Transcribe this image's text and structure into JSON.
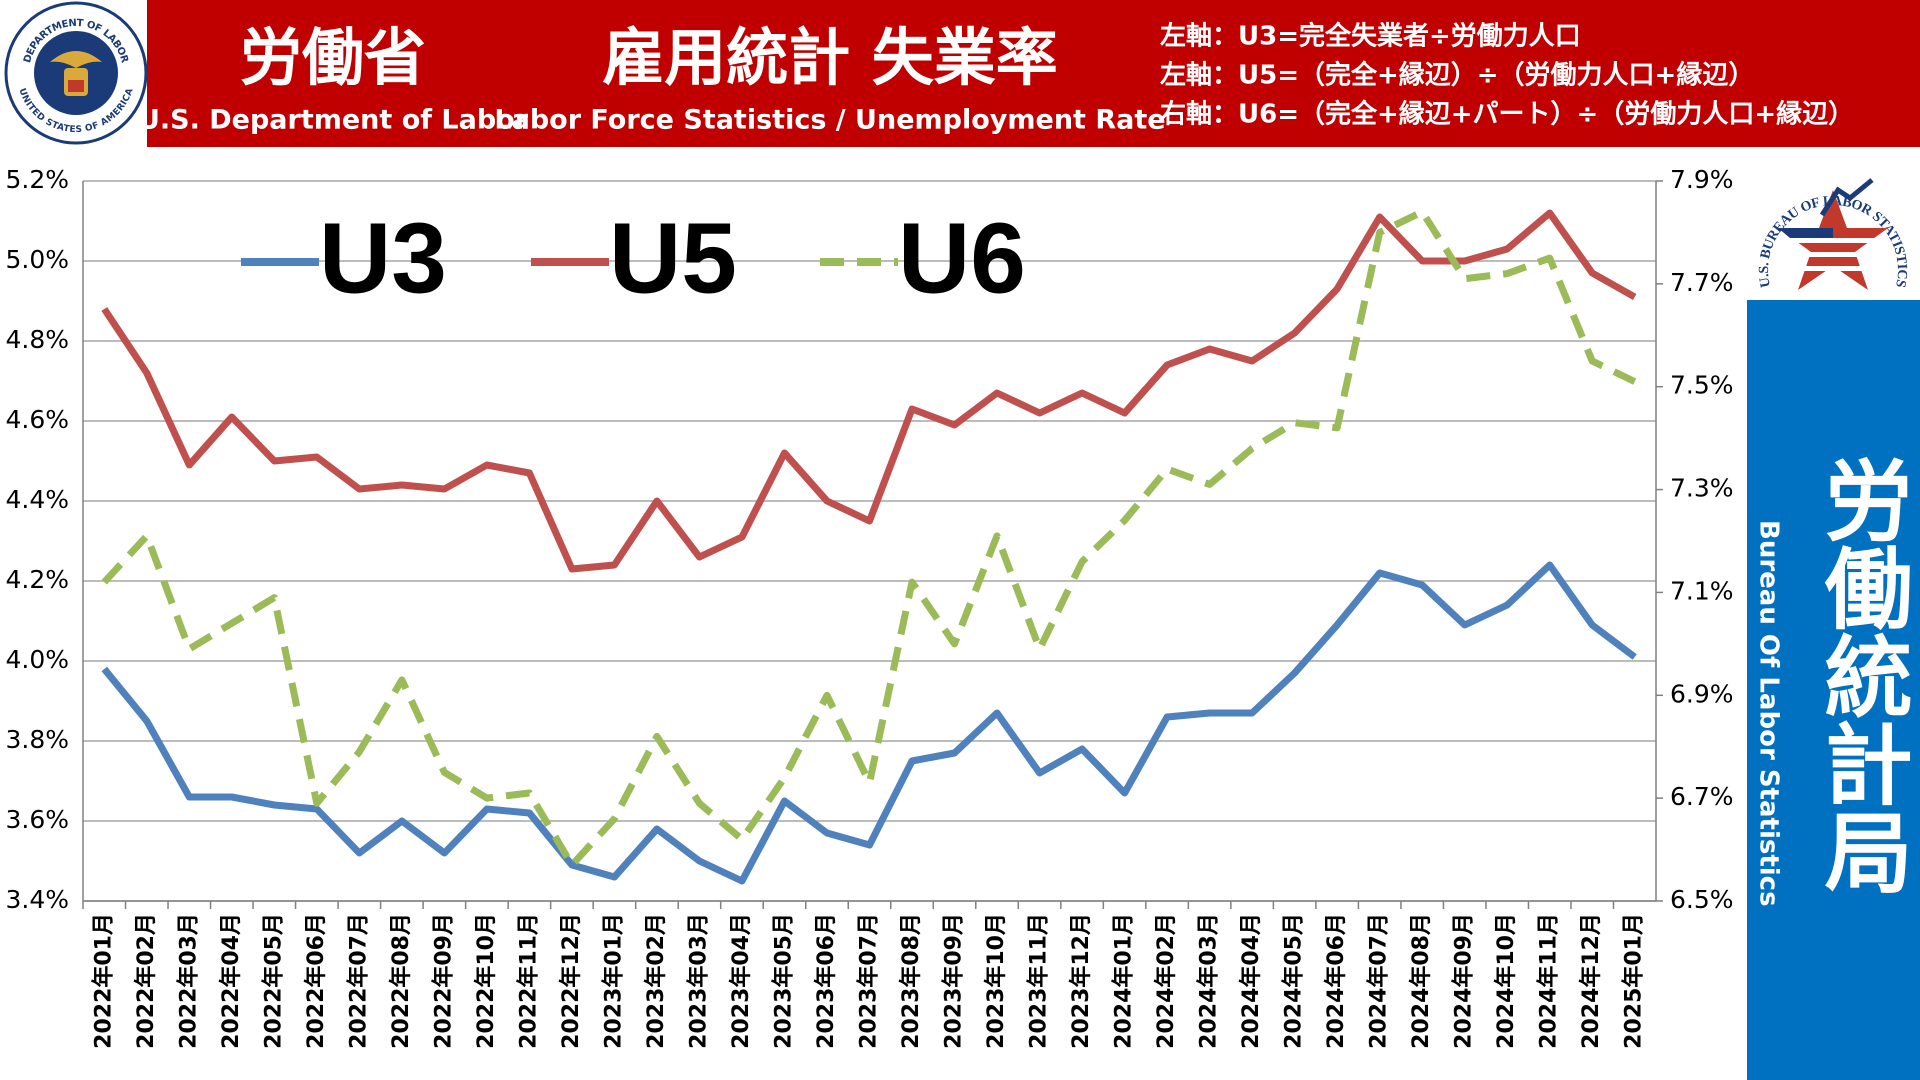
{
  "header": {
    "dol_seal_top": "DEPARTMENT OF LABOR",
    "dol_seal_bottom": "UNITED STATES OF AMERICA",
    "agency_ja": "労働省",
    "agency_en": "U.S. Department of Labor",
    "title_ja": "雇用統計 失業率",
    "title_en": "Labor Force Statistics / Unemployment Rate",
    "notes": [
      "左軸：U3=完全失業者÷労働力人口",
      "左軸：U5=（完全+縁辺）÷（労働力人口+縁辺）",
      "右軸：U6=（完全+縁辺+パート）÷（労働力人口+縁辺）"
    ]
  },
  "side_panel": {
    "bls_logo": "U.S. BUREAU OF LABOR STATISTICS",
    "name_ja": "労働統計局",
    "name_en": "Bureau Of Labor Statistics"
  },
  "chart_data": {
    "type": "line",
    "grid": true,
    "categories": [
      "2022年01月",
      "2022年02月",
      "2022年03月",
      "2022年04月",
      "2022年05月",
      "2022年06月",
      "2022年07月",
      "2022年08月",
      "2022年09月",
      "2022年10月",
      "2022年11月",
      "2022年12月",
      "2023年01月",
      "2023年02月",
      "2023年03月",
      "2023年04月",
      "2023年05月",
      "2023年06月",
      "2023年07月",
      "2023年08月",
      "2023年09月",
      "2023年10月",
      "2023年11月",
      "2023年12月",
      "2024年01月",
      "2024年02月",
      "2024年03月",
      "2024年04月",
      "2024年05月",
      "2024年06月",
      "2024年07月",
      "2024年08月",
      "2024年09月",
      "2024年10月",
      "2024年11月",
      "2024年12月",
      "2025年01月"
    ],
    "series": [
      {
        "name": "U3",
        "color": "#4f81bd",
        "axis": "y",
        "values": [
          3.98,
          3.85,
          3.66,
          3.66,
          3.64,
          3.63,
          3.52,
          3.6,
          3.52,
          3.63,
          3.62,
          3.49,
          3.46,
          3.58,
          3.5,
          3.45,
          3.65,
          3.57,
          3.54,
          3.75,
          3.77,
          3.87,
          3.72,
          3.78,
          3.67,
          3.86,
          3.87,
          3.87,
          3.97,
          4.09,
          4.22,
          4.19,
          4.09,
          4.14,
          4.24,
          4.09,
          4.01
        ]
      },
      {
        "name": "U5",
        "color": "#c0504d",
        "axis": "y",
        "values": [
          4.88,
          4.72,
          4.49,
          4.61,
          4.5,
          4.51,
          4.43,
          4.44,
          4.43,
          4.49,
          4.47,
          4.23,
          4.24,
          4.4,
          4.26,
          4.31,
          4.52,
          4.4,
          4.35,
          4.63,
          4.59,
          4.67,
          4.62,
          4.67,
          4.62,
          4.74,
          4.78,
          4.75,
          4.82,
          4.93,
          5.11,
          5.0,
          5.0,
          5.03,
          5.12,
          4.97,
          4.91
        ]
      },
      {
        "name": "U6",
        "color": "#9bbb59",
        "axis": "y2",
        "dashed": true,
        "values": [
          7.12,
          7.21,
          6.99,
          7.04,
          7.09,
          6.69,
          6.79,
          6.93,
          6.75,
          6.7,
          6.71,
          6.57,
          6.66,
          6.82,
          6.69,
          6.62,
          6.74,
          6.9,
          6.73,
          7.12,
          7.0,
          7.21,
          6.99,
          7.16,
          7.24,
          7.34,
          7.31,
          7.38,
          7.43,
          7.42,
          7.8,
          7.84,
          7.71,
          7.72,
          7.75,
          7.55,
          7.51
        ]
      }
    ],
    "ylim": [
      3.4,
      5.2
    ],
    "yticks": [
      {
        "value": 3.4,
        "label": "3.4%"
      },
      {
        "value": 3.6,
        "label": "3.6%"
      },
      {
        "value": 3.8,
        "label": "3.8%"
      },
      {
        "value": 4.0,
        "label": "4.0%"
      },
      {
        "value": 4.2,
        "label": "4.2%"
      },
      {
        "value": 4.4,
        "label": "4.4%"
      },
      {
        "value": 4.6,
        "label": "4.6%"
      },
      {
        "value": 4.8,
        "label": "4.8%"
      },
      {
        "value": 5.0,
        "label": "5.0%"
      },
      {
        "value": 5.2,
        "label": "5.2%"
      }
    ],
    "y2lim": [
      6.5,
      7.9
    ],
    "y2ticks": [
      {
        "value": 6.5,
        "label": "6.5%"
      },
      {
        "value": 6.7,
        "label": "6.7%"
      },
      {
        "value": 6.9,
        "label": "6.9%"
      },
      {
        "value": 7.1,
        "label": "7.1%"
      },
      {
        "value": 7.3,
        "label": "7.3%"
      },
      {
        "value": 7.5,
        "label": "7.5%"
      },
      {
        "value": 7.7,
        "label": "7.7%"
      },
      {
        "value": 7.9,
        "label": "7.9%"
      }
    ]
  }
}
